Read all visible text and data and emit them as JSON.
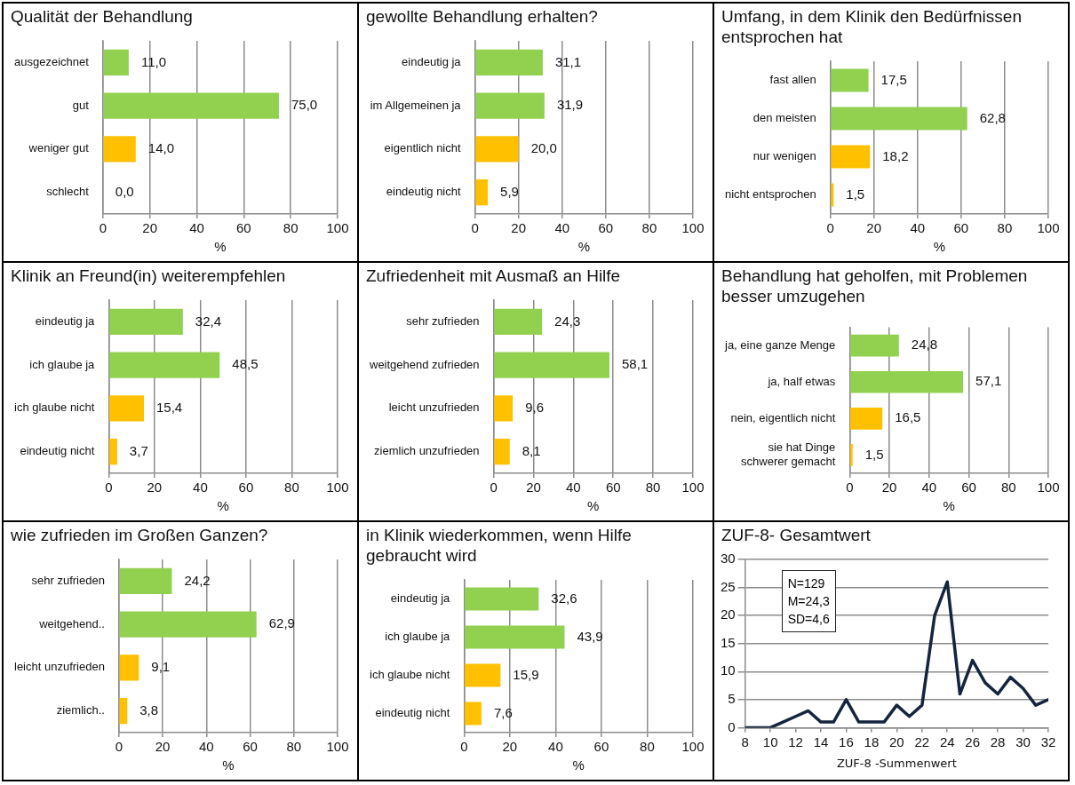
{
  "chart_data": [
    {
      "type": "bar",
      "orientation": "horizontal",
      "title": "Qualität der Behandlung",
      "categories": [
        "ausgezeichnet",
        "gut",
        "weniger gut",
        "schlecht"
      ],
      "values": [
        11.0,
        75.0,
        14.0,
        0.0
      ],
      "value_labels": [
        "11,0",
        "75,0",
        "14,0",
        "0,0"
      ],
      "colors": [
        "#92d050",
        "#92d050",
        "#ffc000",
        "#ffc000"
      ],
      "xlabel": "%",
      "xlim": [
        0,
        100
      ],
      "xticks": [
        0,
        20,
        40,
        60,
        80,
        100
      ],
      "grid": "x"
    },
    {
      "type": "bar",
      "orientation": "horizontal",
      "title": "gewollte Behandlung erhalten?",
      "categories": [
        "eindeutig ja",
        "im Allgemeinen ja",
        "eigentlich nicht",
        "eindeutig nicht"
      ],
      "values": [
        31.1,
        31.9,
        20.0,
        5.9
      ],
      "value_labels": [
        "31,1",
        "31,9",
        "20,0",
        "5,9"
      ],
      "colors": [
        "#92d050",
        "#92d050",
        "#ffc000",
        "#ffc000"
      ],
      "xlabel": "%",
      "xlim": [
        0,
        100
      ],
      "xticks": [
        0,
        20,
        40,
        60,
        80,
        100
      ],
      "grid": "x"
    },
    {
      "type": "bar",
      "orientation": "horizontal",
      "title": "Umfang, in dem Klinik den Bedürfnissen entsprochen hat",
      "categories": [
        "fast allen",
        "den meisten",
        "nur wenigen",
        "nicht entsprochen"
      ],
      "values": [
        17.5,
        62.8,
        18.2,
        1.5
      ],
      "value_labels": [
        "17,5",
        "62,8",
        "18,2",
        "1,5"
      ],
      "colors": [
        "#92d050",
        "#92d050",
        "#ffc000",
        "#ffc000"
      ],
      "xlabel": "%",
      "xlim": [
        0,
        100
      ],
      "xticks": [
        0,
        20,
        40,
        60,
        80,
        100
      ],
      "grid": "x"
    },
    {
      "type": "bar",
      "orientation": "horizontal",
      "title": "Klinik an Freund(in) weiterempfehlen",
      "categories": [
        "eindeutig ja",
        "ich glaube ja",
        "ich glaube nicht",
        "eindeutig nicht"
      ],
      "values": [
        32.4,
        48.5,
        15.4,
        3.7
      ],
      "value_labels": [
        "32,4",
        "48,5",
        "15,4",
        "3,7"
      ],
      "colors": [
        "#92d050",
        "#92d050",
        "#ffc000",
        "#ffc000"
      ],
      "xlabel": "%",
      "xlim": [
        0,
        100
      ],
      "xticks": [
        0,
        20,
        40,
        60,
        80,
        100
      ],
      "grid": "x"
    },
    {
      "type": "bar",
      "orientation": "horizontal",
      "title": "Zufriedenheit mit Ausmaß an Hilfe",
      "categories": [
        "sehr zufrieden",
        "weitgehend zufrieden",
        "leicht unzufrieden",
        "ziemlich unzufrieden"
      ],
      "values": [
        24.3,
        58.1,
        9.6,
        8.1
      ],
      "value_labels": [
        "24,3",
        "58,1",
        "9,6",
        "8,1"
      ],
      "colors": [
        "#92d050",
        "#92d050",
        "#ffc000",
        "#ffc000"
      ],
      "xlabel": "%",
      "xlim": [
        0,
        100
      ],
      "xticks": [
        0,
        20,
        40,
        60,
        80,
        100
      ],
      "grid": "x"
    },
    {
      "type": "bar",
      "orientation": "horizontal",
      "title": "Behandlung hat geholfen, mit Problemen besser umzugehen",
      "categories": [
        "ja, eine ganze Menge",
        "ja, half etwas",
        "nein, eigentlich nicht",
        "sie hat Dinge schwerer gemacht"
      ],
      "values": [
        24.8,
        57.1,
        16.5,
        1.5
      ],
      "value_labels": [
        "24,8",
        "57,1",
        "16,5",
        "1,5"
      ],
      "colors": [
        "#92d050",
        "#92d050",
        "#ffc000",
        "#ffc000"
      ],
      "xlabel": "%",
      "xlim": [
        0,
        100
      ],
      "xticks": [
        0,
        20,
        40,
        60,
        80,
        100
      ],
      "grid": "x"
    },
    {
      "type": "bar",
      "orientation": "horizontal",
      "title": "wie zufrieden im Großen Ganzen?",
      "categories": [
        "sehr zufrieden",
        "weitgehend..",
        "leicht unzufrieden",
        "ziemlich.."
      ],
      "values": [
        24.2,
        62.9,
        9.1,
        3.8
      ],
      "value_labels": [
        "24,2",
        "62,9",
        "9,1",
        "3,8"
      ],
      "colors": [
        "#92d050",
        "#92d050",
        "#ffc000",
        "#ffc000"
      ],
      "xlabel": "%",
      "xlim": [
        0,
        100
      ],
      "xticks": [
        0,
        20,
        40,
        60,
        80,
        100
      ],
      "grid": "x"
    },
    {
      "type": "bar",
      "orientation": "horizontal",
      "title": "in Klinik wiederkommen, wenn Hilfe gebraucht wird",
      "categories": [
        "eindeutig ja",
        "ich glaube ja",
        "ich glaube nicht",
        "eindeutig nicht"
      ],
      "values": [
        32.6,
        43.9,
        15.9,
        7.6
      ],
      "value_labels": [
        "32,6",
        "43,9",
        "15,9",
        "7,6"
      ],
      "colors": [
        "#92d050",
        "#92d050",
        "#ffc000",
        "#ffc000"
      ],
      "xlabel": "%",
      "xlim": [
        0,
        100
      ],
      "xticks": [
        0,
        20,
        40,
        60,
        80,
        100
      ],
      "grid": "x"
    },
    {
      "type": "line",
      "title": "ZUF-8- Gesamtwert",
      "x": [
        8,
        9,
        10,
        11,
        12,
        13,
        14,
        15,
        16,
        17,
        18,
        19,
        20,
        21,
        22,
        23,
        24,
        25,
        26,
        27,
        28,
        29,
        30,
        31,
        32
      ],
      "values": [
        0,
        0,
        0,
        1,
        2,
        3,
        1,
        1,
        5,
        1,
        1,
        1,
        4,
        2,
        4,
        20,
        26,
        6,
        12,
        8,
        6,
        9,
        7,
        4,
        5
      ],
      "color": "#14253d",
      "marker": "none",
      "xlabel": "ZUF-8 -Summenwert",
      "xlim": [
        8,
        32
      ],
      "xticks": [
        8,
        10,
        12,
        14,
        16,
        18,
        20,
        22,
        24,
        26,
        28,
        30,
        32
      ],
      "ylim": [
        0,
        30
      ],
      "yticks": [
        0,
        5,
        10,
        15,
        20,
        25,
        30
      ],
      "grid": "y",
      "annotations": [
        "N=129",
        "M=24,3",
        "SD=4,6"
      ]
    }
  ]
}
